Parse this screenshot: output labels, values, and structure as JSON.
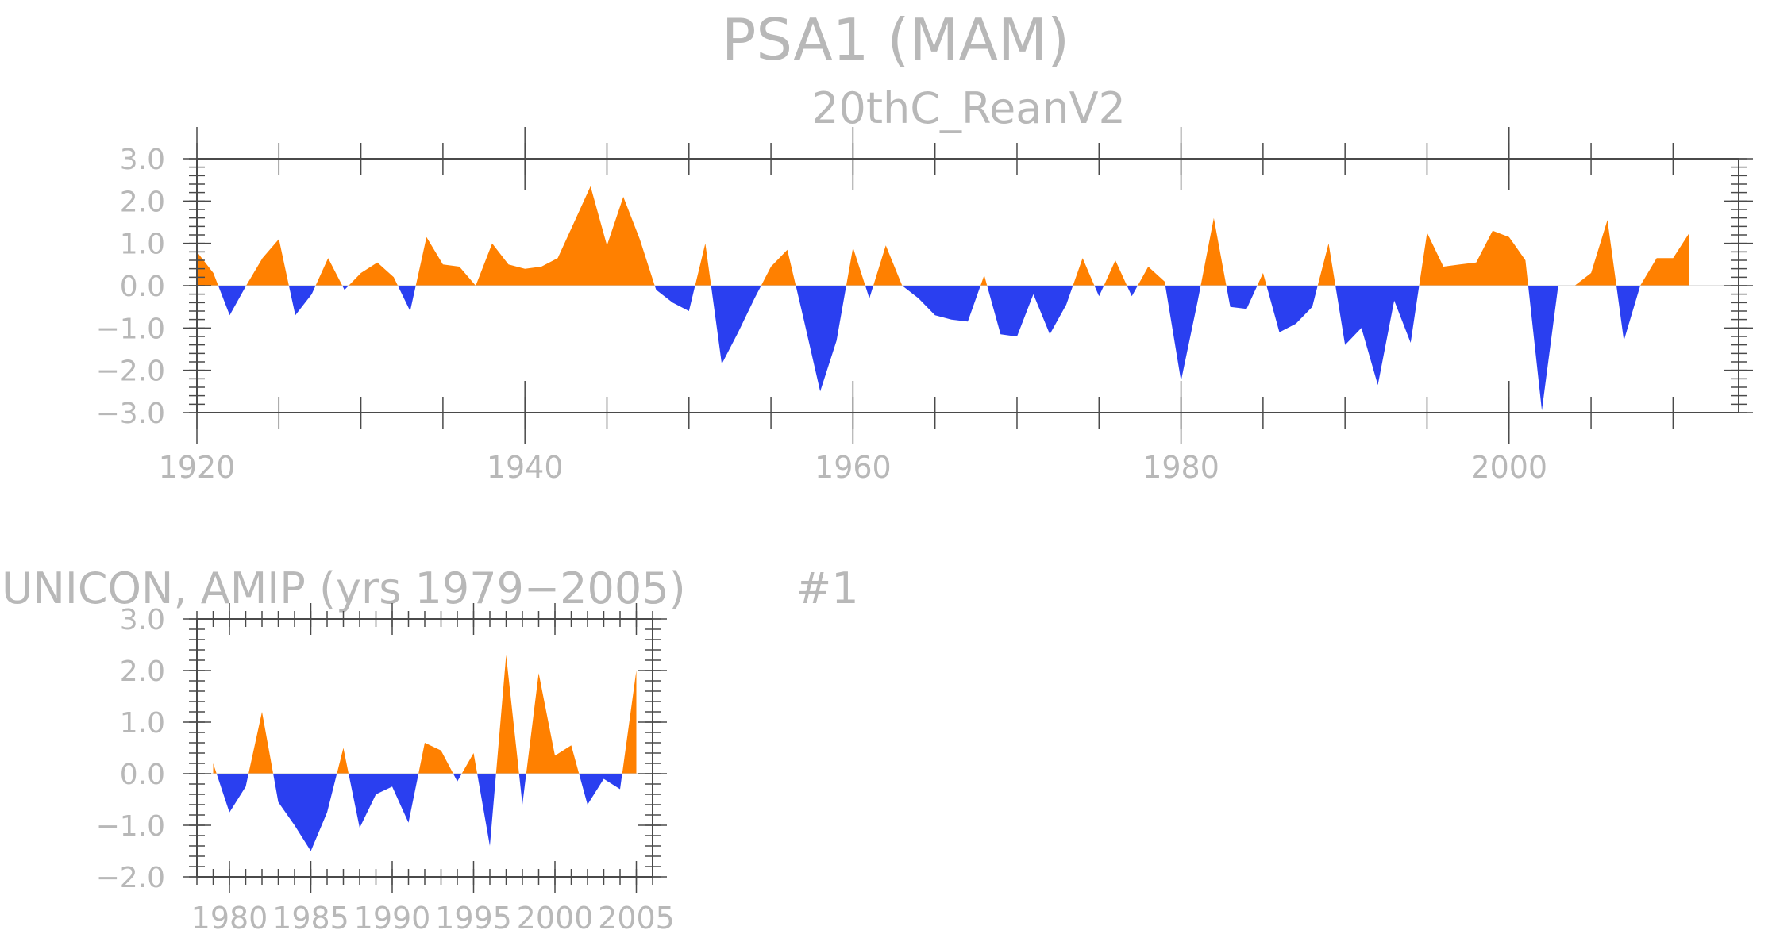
{
  "title": "PSA1 (MAM)",
  "subtitle": "20thC_ReanV2",
  "colors": {
    "positive": "#ff8000",
    "negative": "#2a3ff0",
    "text": "#b8b8b8",
    "axis": "#4a4a4a"
  },
  "chart_data": [
    {
      "type": "area",
      "name": "20thC_ReanV2",
      "x_start": 1920,
      "x_end": 2012,
      "xlim": [
        1920,
        2014
      ],
      "ylim": [
        -3.0,
        3.0
      ],
      "yticks": [
        "3.0",
        "2.0",
        "1.0",
        "0.0",
        "−1.0",
        "−2.0",
        "−3.0"
      ],
      "ytick_values": [
        3,
        2,
        1,
        0,
        -1,
        -2,
        -3
      ],
      "xticks": [
        "1920",
        "1940",
        "1960",
        "1980",
        "2000"
      ],
      "xtick_values": [
        1920,
        1940,
        1960,
        1980,
        2000
      ],
      "values": [
        0.8,
        0.3,
        -0.7,
        0.0,
        0.65,
        1.1,
        -0.7,
        -0.2,
        0.65,
        -0.1,
        0.3,
        0.55,
        0.2,
        -0.6,
        1.15,
        0.5,
        0.45,
        0.0,
        1.0,
        0.5,
        0.4,
        0.45,
        0.65,
        1.5,
        2.35,
        0.95,
        2.1,
        1.1,
        -0.1,
        -0.4,
        -0.6,
        1.0,
        -1.85,
        -1.1,
        -0.3,
        0.45,
        0.85,
        -0.8,
        -2.5,
        -1.3,
        0.9,
        -0.3,
        0.95,
        0.0,
        -0.3,
        -0.7,
        -0.8,
        -0.85,
        0.25,
        -1.15,
        -1.2,
        -0.2,
        -1.15,
        -0.45,
        0.65,
        -0.25,
        0.6,
        -0.25,
        0.45,
        0.1,
        -2.25,
        -0.4,
        1.6,
        -0.5,
        -0.55,
        0.3,
        -1.1,
        -0.9,
        -0.5,
        1.0,
        -1.4,
        -1.0,
        -2.35,
        -0.35,
        -1.35,
        1.25,
        0.45,
        0.5,
        0.55,
        1.3,
        1.15,
        0.6,
        -2.95,
        0.0,
        0.0,
        0.3,
        1.55,
        -1.3,
        0.0,
        0.65,
        0.65,
        1.25
      ]
    },
    {
      "type": "area",
      "name": "UNICON, AMIP (yrs 1979-2005)",
      "x_start": 1979,
      "x_end": 2005,
      "xlim": [
        1978,
        2006
      ],
      "ylim": [
        -2.0,
        3.0
      ],
      "yticks": [
        "3.0",
        "2.0",
        "1.0",
        "0.0",
        "−1.0",
        "−2.0"
      ],
      "ytick_values": [
        3,
        2,
        1,
        0,
        -1,
        -2
      ],
      "xticks": [
        "1980",
        "1985",
        "1990",
        "1995",
        "2000",
        "2005"
      ],
      "xtick_values": [
        1980,
        1985,
        1990,
        1995,
        2000,
        2005
      ],
      "values": [
        0.2,
        -0.75,
        -0.25,
        1.2,
        -0.55,
        -1.0,
        -1.5,
        -0.75,
        0.5,
        -1.05,
        -0.4,
        -0.25,
        -0.95,
        0.6,
        0.45,
        -0.15,
        0.4,
        -1.4,
        2.3,
        -0.6,
        1.95,
        0.35,
        0.55,
        -0.6,
        -0.1,
        -0.3,
        2.0
      ]
    }
  ],
  "panel2": {
    "title": "UNICON, AMIP (yrs 1979−2005)",
    "tag": "#1"
  }
}
